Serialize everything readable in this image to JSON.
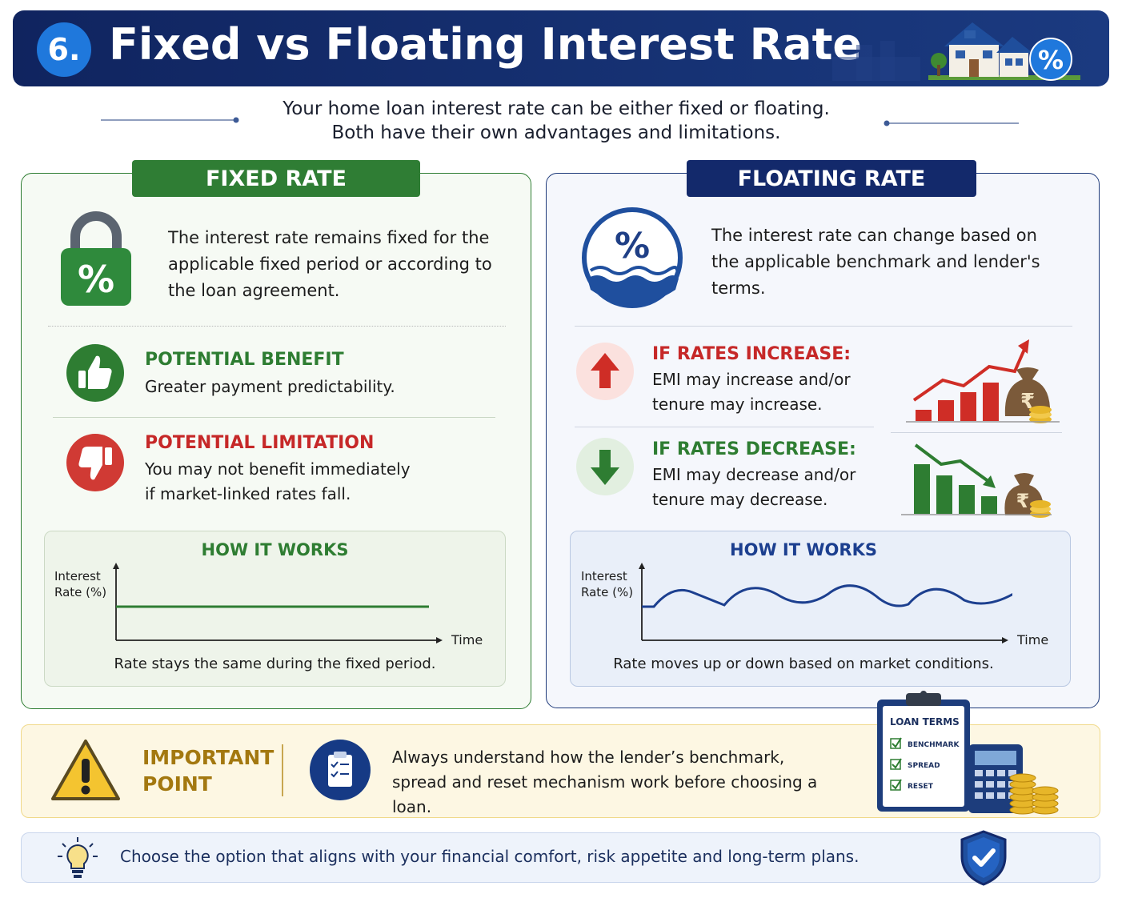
{
  "header": {
    "number": "6.",
    "title": "Fixed vs Floating Interest Rate",
    "badge": "%"
  },
  "intro": {
    "lines": [
      "Your home loan interest rate can be either fixed or floating.",
      "Both have their own advantages and limitations."
    ]
  },
  "fixed": {
    "title": "FIXED RATE",
    "icon": "%",
    "description": "The interest rate remains fixed for the applicable fixed period or according to the loan agreement.",
    "benefit": {
      "heading": "POTENTIAL BENEFIT",
      "text": "Greater payment predictability."
    },
    "limitation": {
      "heading": "POTENTIAL LIMITATION",
      "text": "You may not benefit immediately if market-linked rates fall."
    },
    "how_it_works": {
      "title": "HOW IT WORKS",
      "y_label": "Interest Rate (%)",
      "x_label": "Time",
      "caption": "Rate stays the same during the fixed period."
    }
  },
  "floating": {
    "title": "FLOATING RATE",
    "icon": "%",
    "currency": "₹",
    "description": "The interest rate can change based on the applicable benchmark and lender's terms.",
    "increase": {
      "heading": "IF RATES INCREASE:",
      "text": "EMI may increase and/or tenure may increase."
    },
    "decrease": {
      "heading": "IF RATES DECREASE:",
      "text": "EMI may decrease and/or tenure may decrease."
    },
    "how_it_works": {
      "title": "HOW IT WORKS",
      "y_label": "Interest Rate (%)",
      "x_label": "Time",
      "caption": "Rate moves up or down based on market conditions."
    }
  },
  "important": {
    "heading": "IMPORTANT POINT",
    "text": "Always understand how the lender’s benchmark, spread and reset mechanism work before choosing a loan.",
    "clipboard": {
      "title": "LOAN TERMS",
      "items": [
        "BENCHMARK",
        "SPREAD",
        "RESET"
      ]
    }
  },
  "footer": {
    "text": "Choose the option that aligns with your financial comfort, risk appetite and long-term plans."
  }
}
